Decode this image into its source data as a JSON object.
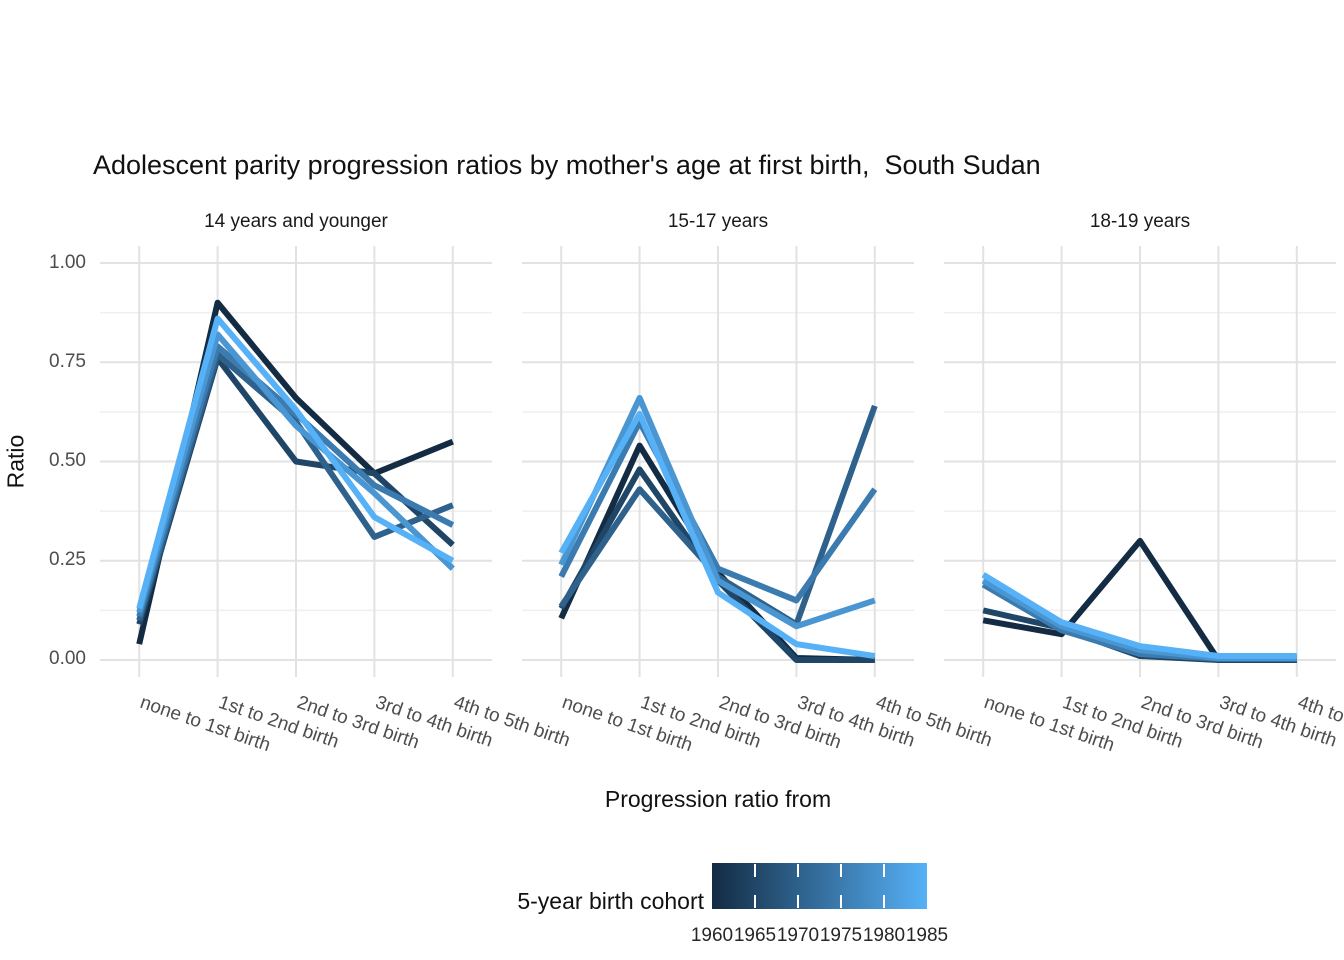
{
  "chart_data": {
    "type": "line",
    "title": "Adolescent parity progression ratios by mother's age at first birth,  South Sudan",
    "xlabel": "Progression ratio from",
    "ylabel": "Ratio",
    "ylim": [
      0,
      1
    ],
    "yticks": [
      0,
      0.25,
      0.5,
      0.75,
      1
    ],
    "ytick_labels": [
      "0.00",
      "0.25",
      "0.50",
      "0.75",
      "1.00"
    ],
    "grid": true,
    "grid_major_color": "#e2e2e2",
    "grid_minor_color": "#efefef",
    "axis_text_color": "#4d4d4d",
    "categories": [
      "none to 1st birth",
      "1st to 2nd birth",
      "2nd to 3rd birth",
      "3rd to 4th birth",
      "4th to 5th birth"
    ],
    "cohort_colors": {
      "1960": "#132B43",
      "1965": "#204667",
      "1970": "#2E618B",
      "1975": "#3B7BAF",
      "1980": "#4996D3",
      "1985": "#56B1F7"
    },
    "facets": [
      {
        "label": "14 years and younger",
        "series": [
          {
            "cohort": "1960",
            "values": [
              0.04,
              0.9,
              0.66,
              0.47,
              0.55
            ]
          },
          {
            "cohort": "1965",
            "values": [
              0.09,
              0.76,
              0.5,
              0.47,
              0.29
            ]
          },
          {
            "cohort": "1970",
            "values": [
              0.1,
              0.77,
              0.6,
              0.31,
              0.39
            ]
          },
          {
            "cohort": "1975",
            "values": [
              0.11,
              0.79,
              0.62,
              0.44,
              0.34
            ]
          },
          {
            "cohort": "1980",
            "values": [
              0.12,
              0.82,
              0.59,
              0.42,
              0.23
            ]
          },
          {
            "cohort": "1985",
            "values": [
              0.13,
              0.86,
              0.63,
              0.36,
              0.25
            ]
          }
        ]
      },
      {
        "label": "15-17 years",
        "series": [
          {
            "cohort": "1960",
            "values": [
              0.105,
              0.54,
              0.22,
              0.005,
              0.0
            ]
          },
          {
            "cohort": "1965",
            "values": [
              0.13,
              0.48,
              0.2,
              0.0,
              0.0
            ]
          },
          {
            "cohort": "1970",
            "values": [
              0.135,
              0.43,
              0.21,
              0.09,
              0.64
            ]
          },
          {
            "cohort": "1975",
            "values": [
              0.21,
              0.6,
              0.23,
              0.15,
              0.43
            ]
          },
          {
            "cohort": "1980",
            "values": [
              0.24,
              0.66,
              0.2,
              0.085,
              0.15
            ]
          },
          {
            "cohort": "1985",
            "values": [
              0.27,
              0.62,
              0.17,
              0.04,
              0.01
            ]
          }
        ]
      },
      {
        "label": "18-19 years",
        "series": [
          {
            "cohort": "1960",
            "values": [
              0.1,
              0.065,
              0.3,
              0.0,
              0.0
            ]
          },
          {
            "cohort": "1965",
            "values": [
              0.125,
              0.08,
              0.01,
              0.0,
              0.0
            ]
          },
          {
            "cohort": "1975",
            "values": [
              0.19,
              0.075,
              0.015,
              0.003,
              0.003
            ]
          },
          {
            "cohort": "1980",
            "values": [
              0.2,
              0.085,
              0.025,
              0.005,
              0.005
            ]
          },
          {
            "cohort": "1985",
            "values": [
              0.215,
              0.095,
              0.035,
              0.01,
              0.01
            ]
          }
        ]
      }
    ],
    "legend": {
      "title": "5-year birth cohort",
      "style": "colorbar",
      "low_color": "#132B43",
      "high_color": "#56B1F7",
      "labels": [
        "1960",
        "1965",
        "1970",
        "1975",
        "1980",
        "1985"
      ]
    }
  }
}
